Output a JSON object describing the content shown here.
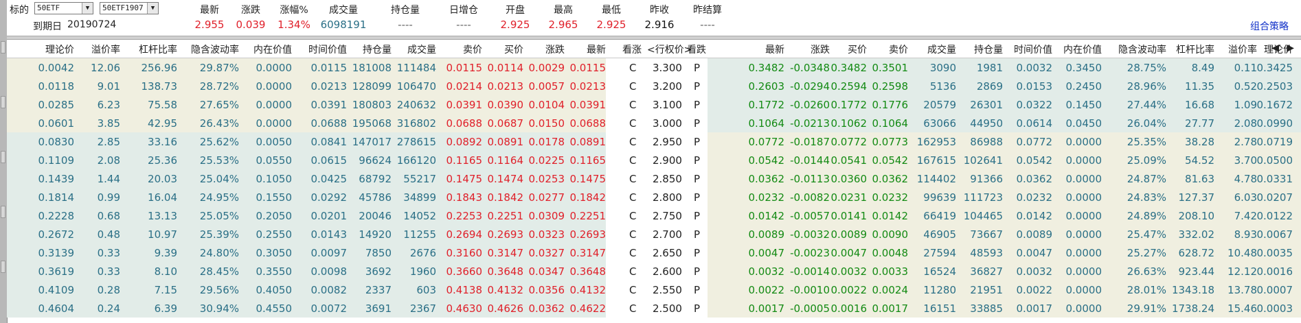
{
  "header": {
    "target_label": "标的",
    "underlying": "50ETF",
    "contract": "50ETF1907",
    "expiry_label": "到期日",
    "expiry": "20190724",
    "strategy_link": "组合策略",
    "quote_labels": [
      "最新",
      "涨跌",
      "涨幅%",
      "成交量",
      "持仓量",
      "日增仓",
      "开盘",
      "最高",
      "最低",
      "昨收",
      "昨结算"
    ],
    "quote_values": [
      "2.955",
      "0.039",
      "1.34%",
      "6098191",
      "----",
      "----",
      "2.925",
      "2.965",
      "2.925",
      "2.916",
      "----"
    ]
  },
  "columns": {
    "call": [
      "理论价",
      "溢价率",
      "杠杆比率",
      "隐含波动率",
      "内在价值",
      "时间价值",
      "持仓量",
      "成交量",
      "卖价",
      "买价",
      "涨跌",
      "最新"
    ],
    "strike": [
      "看涨",
      "<行权价>",
      "看跌"
    ],
    "put": [
      "最新",
      "涨跌",
      "买价",
      "卖价",
      "成交量",
      "持仓量",
      "时间价值",
      "内在价值",
      "隐含波动率",
      "杠杆比率",
      "溢价率",
      "理论价"
    ]
  },
  "scroll_arrows": [
    "◀",
    "▶"
  ],
  "rows": [
    {
      "call": [
        "0.0042",
        "12.06",
        "256.96",
        "29.87%",
        "0.0000",
        "0.0115",
        "181008",
        "111484",
        "0.0115",
        "0.0114",
        "0.0029",
        "0.0115"
      ],
      "c": "C",
      "strike": "3.300",
      "p": "P",
      "put": [
        "0.3482",
        "-0.0348",
        "0.3482",
        "0.3501",
        "3090",
        "1981",
        "0.0032",
        "0.3450",
        "28.75%",
        "8.49",
        "0.11",
        "0.3425"
      ]
    },
    {
      "call": [
        "0.0118",
        "9.01",
        "138.73",
        "28.72%",
        "0.0000",
        "0.0213",
        "128099",
        "106470",
        "0.0214",
        "0.0213",
        "0.0057",
        "0.0213"
      ],
      "c": "C",
      "strike": "3.200",
      "p": "P",
      "put": [
        "0.2603",
        "-0.0294",
        "0.2594",
        "0.2598",
        "5136",
        "2869",
        "0.0153",
        "0.2450",
        "28.96%",
        "11.35",
        "0.52",
        "0.2503"
      ]
    },
    {
      "call": [
        "0.0285",
        "6.23",
        "75.58",
        "27.65%",
        "0.0000",
        "0.0391",
        "180803",
        "240632",
        "0.0391",
        "0.0390",
        "0.0104",
        "0.0391"
      ],
      "c": "C",
      "strike": "3.100",
      "p": "P",
      "put": [
        "0.1772",
        "-0.0260",
        "0.1772",
        "0.1776",
        "20579",
        "26301",
        "0.0322",
        "0.1450",
        "27.44%",
        "16.68",
        "1.09",
        "0.1672"
      ]
    },
    {
      "call": [
        "0.0601",
        "3.85",
        "42.95",
        "26.43%",
        "0.0000",
        "0.0688",
        "195068",
        "316802",
        "0.0688",
        "0.0687",
        "0.0150",
        "0.0688"
      ],
      "c": "C",
      "strike": "3.000",
      "p": "P",
      "put": [
        "0.1064",
        "-0.0213",
        "0.1062",
        "0.1064",
        "63066",
        "44950",
        "0.0614",
        "0.0450",
        "26.04%",
        "27.77",
        "2.08",
        "0.0990"
      ]
    },
    {
      "call": [
        "0.0830",
        "2.85",
        "33.16",
        "25.62%",
        "0.0050",
        "0.0841",
        "147017",
        "278615",
        "0.0892",
        "0.0891",
        "0.0178",
        "0.0891"
      ],
      "c": "C",
      "strike": "2.950",
      "p": "P",
      "put": [
        "0.0772",
        "-0.0187",
        "0.0772",
        "0.0773",
        "162953",
        "86988",
        "0.0772",
        "0.0000",
        "25.35%",
        "38.28",
        "2.78",
        "0.0719"
      ]
    },
    {
      "call": [
        "0.1109",
        "2.08",
        "25.36",
        "25.53%",
        "0.0550",
        "0.0615",
        "96624",
        "166120",
        "0.1165",
        "0.1164",
        "0.0225",
        "0.1165"
      ],
      "c": "C",
      "strike": "2.900",
      "p": "P",
      "put": [
        "0.0542",
        "-0.0144",
        "0.0541",
        "0.0542",
        "167615",
        "102641",
        "0.0542",
        "0.0000",
        "25.09%",
        "54.52",
        "3.70",
        "0.0500"
      ]
    },
    {
      "call": [
        "0.1439",
        "1.44",
        "20.03",
        "25.04%",
        "0.1050",
        "0.0425",
        "68792",
        "55217",
        "0.1475",
        "0.1474",
        "0.0253",
        "0.1475"
      ],
      "c": "C",
      "strike": "2.850",
      "p": "P",
      "put": [
        "0.0362",
        "-0.0113",
        "0.0360",
        "0.0362",
        "114402",
        "91366",
        "0.0362",
        "0.0000",
        "24.87%",
        "81.63",
        "4.78",
        "0.0331"
      ]
    },
    {
      "call": [
        "0.1814",
        "0.99",
        "16.04",
        "24.95%",
        "0.1550",
        "0.0292",
        "45786",
        "34899",
        "0.1843",
        "0.1842",
        "0.0277",
        "0.1842"
      ],
      "c": "C",
      "strike": "2.800",
      "p": "P",
      "put": [
        "0.0232",
        "-0.0082",
        "0.0231",
        "0.0232",
        "99639",
        "111723",
        "0.0232",
        "0.0000",
        "24.83%",
        "127.37",
        "6.03",
        "0.0207"
      ]
    },
    {
      "call": [
        "0.2228",
        "0.68",
        "13.13",
        "25.05%",
        "0.2050",
        "0.0201",
        "20046",
        "14052",
        "0.2253",
        "0.2251",
        "0.0309",
        "0.2251"
      ],
      "c": "C",
      "strike": "2.750",
      "p": "P",
      "put": [
        "0.0142",
        "-0.0057",
        "0.0141",
        "0.0142",
        "66419",
        "104465",
        "0.0142",
        "0.0000",
        "24.89%",
        "208.10",
        "7.42",
        "0.0122"
      ]
    },
    {
      "call": [
        "0.2672",
        "0.48",
        "10.97",
        "25.39%",
        "0.2550",
        "0.0143",
        "14920",
        "11255",
        "0.2694",
        "0.2693",
        "0.0323",
        "0.2693"
      ],
      "c": "C",
      "strike": "2.700",
      "p": "P",
      "put": [
        "0.0089",
        "-0.0032",
        "0.0089",
        "0.0090",
        "46905",
        "73667",
        "0.0089",
        "0.0000",
        "25.47%",
        "332.02",
        "8.93",
        "0.0067"
      ]
    },
    {
      "call": [
        "0.3139",
        "0.33",
        "9.39",
        "24.80%",
        "0.3050",
        "0.0097",
        "7850",
        "2676",
        "0.3160",
        "0.3147",
        "0.0327",
        "0.3147"
      ],
      "c": "C",
      "strike": "2.650",
      "p": "P",
      "put": [
        "0.0047",
        "-0.0023",
        "0.0047",
        "0.0048",
        "27594",
        "48593",
        "0.0047",
        "0.0000",
        "25.27%",
        "628.72",
        "10.48",
        "0.0035"
      ]
    },
    {
      "call": [
        "0.3619",
        "0.33",
        "8.10",
        "28.45%",
        "0.3550",
        "0.0098",
        "3692",
        "1960",
        "0.3660",
        "0.3648",
        "0.0347",
        "0.3648"
      ],
      "c": "C",
      "strike": "2.600",
      "p": "P",
      "put": [
        "0.0032",
        "-0.0014",
        "0.0032",
        "0.0033",
        "16524",
        "36827",
        "0.0032",
        "0.0000",
        "26.63%",
        "923.44",
        "12.12",
        "0.0016"
      ]
    },
    {
      "call": [
        "0.4109",
        "0.28",
        "7.15",
        "29.56%",
        "0.4050",
        "0.0082",
        "2337",
        "603",
        "0.4138",
        "0.4132",
        "0.0356",
        "0.4132"
      ],
      "c": "C",
      "strike": "2.550",
      "p": "P",
      "put": [
        "0.0022",
        "-0.0010",
        "0.0022",
        "0.0024",
        "11280",
        "21951",
        "0.0022",
        "0.0000",
        "28.01%",
        "1343.18",
        "13.78",
        "0.0007"
      ]
    },
    {
      "call": [
        "0.4604",
        "0.24",
        "6.39",
        "30.94%",
        "0.4550",
        "0.0072",
        "3691",
        "2367",
        "0.4630",
        "0.4626",
        "0.0362",
        "0.4622"
      ],
      "c": "C",
      "strike": "2.500",
      "p": "P",
      "put": [
        "0.0017",
        "-0.0005",
        "0.0016",
        "0.0017",
        "16151",
        "33885",
        "0.0017",
        "0.0000",
        "29.91%",
        "1738.24",
        "15.46",
        "0.0003"
      ]
    }
  ]
}
